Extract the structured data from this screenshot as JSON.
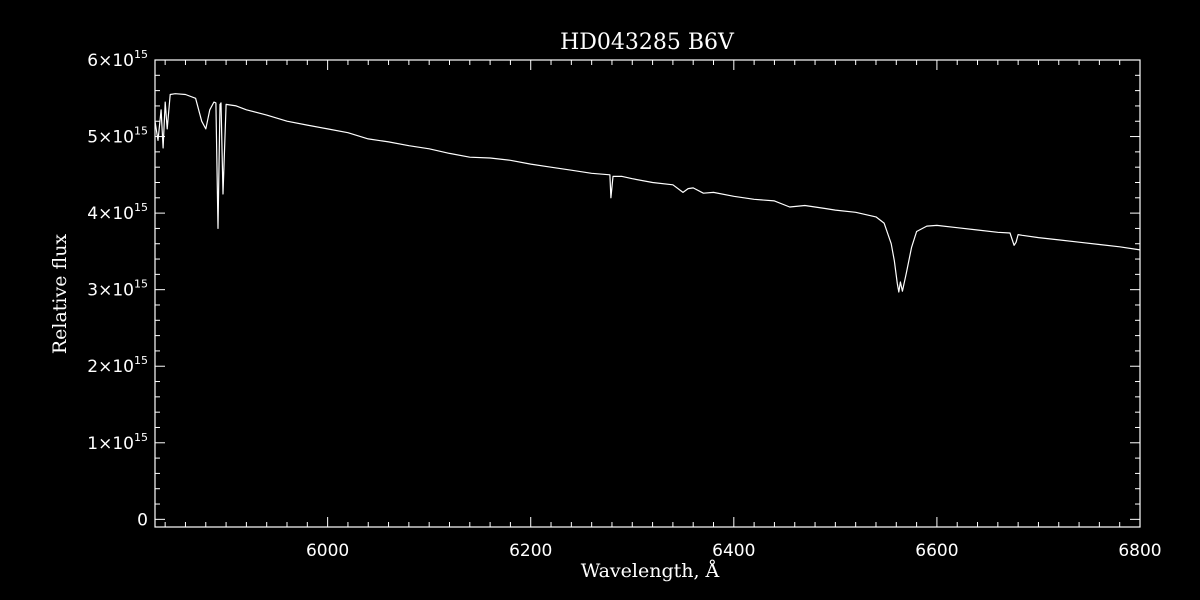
{
  "colors": {
    "background": "#000000",
    "foreground": "#ffffff"
  },
  "chart_data": {
    "type": "line",
    "title": "HD043285   B6V",
    "xlabel": "Wavelength, Å",
    "ylabel": "Relative flux",
    "xlim": [
      5830,
      6800
    ],
    "ylim": [
      -100000000000000.0,
      6000000000000000.0
    ],
    "grid": false,
    "x_ticks": [
      6000,
      6200,
      6400,
      6600,
      6800
    ],
    "x_tick_labels": [
      "6000",
      "6200",
      "6400",
      "6600",
      "6800"
    ],
    "y_ticks": [
      0,
      1000000000000000.0,
      2000000000000000.0,
      3000000000000000.0,
      4000000000000000.0,
      5000000000000000.0,
      6000000000000000.0
    ],
    "y_tick_labels": [
      {
        "mantissa": "0",
        "exp": ""
      },
      {
        "mantissa": "1×10",
        "exp": "15"
      },
      {
        "mantissa": "2×10",
        "exp": "15"
      },
      {
        "mantissa": "3×10",
        "exp": "15"
      },
      {
        "mantissa": "4×10",
        "exp": "15"
      },
      {
        "mantissa": "5×10",
        "exp": "15"
      },
      {
        "mantissa": "6×10",
        "exp": "15"
      }
    ],
    "series": [
      {
        "x": [
          5830,
          5833,
          5836,
          5838,
          5840,
          5842,
          5845,
          5850,
          5860,
          5870,
          5876,
          5880,
          5884,
          5888,
          5890,
          5892,
          5894,
          5895,
          5897,
          5900,
          5910,
          5920,
          5940,
          5960,
          5980,
          6000,
          6020,
          6040,
          6060,
          6080,
          6100,
          6120,
          6140,
          6160,
          6180,
          6200,
          6220,
          6240,
          6260,
          6278,
          6279,
          6281,
          6290,
          6300,
          6320,
          6340,
          6350,
          6355,
          6360,
          6370,
          6380,
          6400,
          6420,
          6440,
          6455,
          6470,
          6490,
          6500,
          6520,
          6540,
          6548,
          6555,
          6558,
          6561,
          6562.5,
          6564,
          6566,
          6570,
          6575,
          6580,
          6590,
          6600,
          6620,
          6640,
          6660,
          6672,
          6676,
          6678,
          6680,
          6684,
          6700,
          6720,
          6740,
          6760,
          6780,
          6800
        ],
        "values": [
          5200000000000000.0,
          4950000000000000.0,
          5350000000000000.0,
          4850000000000000.0,
          5450000000000000.0,
          5100000000000000.0,
          5550000000000000.0,
          5560000000000000.0,
          5550000000000000.0,
          5500000000000000.0,
          5200000000000000.0,
          5100000000000000.0,
          5350000000000000.0,
          5450000000000000.0,
          5440000000000000.0,
          3800000000000000.0,
          5420000000000000.0,
          5440000000000000.0,
          4250000000000000.0,
          5420000000000000.0,
          5400000000000000.0,
          5350000000000000.0,
          5280000000000000.0,
          5200000000000000.0,
          5150000000000000.0,
          5100000000000000.0,
          5050000000000000.0,
          4970000000000000.0,
          4930000000000000.0,
          4880000000000000.0,
          4840000000000000.0,
          4780000000000000.0,
          4730000000000000.0,
          4720000000000000.0,
          4690000000000000.0,
          4640000000000000.0,
          4600000000000000.0,
          4560000000000000.0,
          4520000000000000.0,
          4500000000000000.0,
          4200000000000000.0,
          4480000000000000.0,
          4480000000000000.0,
          4450000000000000.0,
          4400000000000000.0,
          4370000000000000.0,
          4270000000000000.0,
          4320000000000000.0,
          4330000000000000.0,
          4260000000000000.0,
          4270000000000000.0,
          4220000000000000.0,
          4180000000000000.0,
          4160000000000000.0,
          4080000000000000.0,
          4100000000000000.0,
          4060000000000000.0,
          4040000000000000.0,
          4010000000000000.0,
          3950000000000000.0,
          3870000000000000.0,
          3600000000000000.0,
          3380000000000000.0,
          3080000000000000.0,
          2970000000000000.0,
          3100000000000000.0,
          2980000000000000.0,
          3220000000000000.0,
          3550000000000000.0,
          3760000000000000.0,
          3830000000000000.0,
          3840000000000000.0,
          3810000000000000.0,
          3780000000000000.0,
          3750000000000000.0,
          3740000000000000.0,
          3580000000000000.0,
          3620000000000000.0,
          3720000000000000.0,
          3710000000000000.0,
          3680000000000000.0,
          3650000000000000.0,
          3620000000000000.0,
          3590000000000000.0,
          3560000000000000.0,
          3520000000000000.0
        ]
      }
    ]
  }
}
